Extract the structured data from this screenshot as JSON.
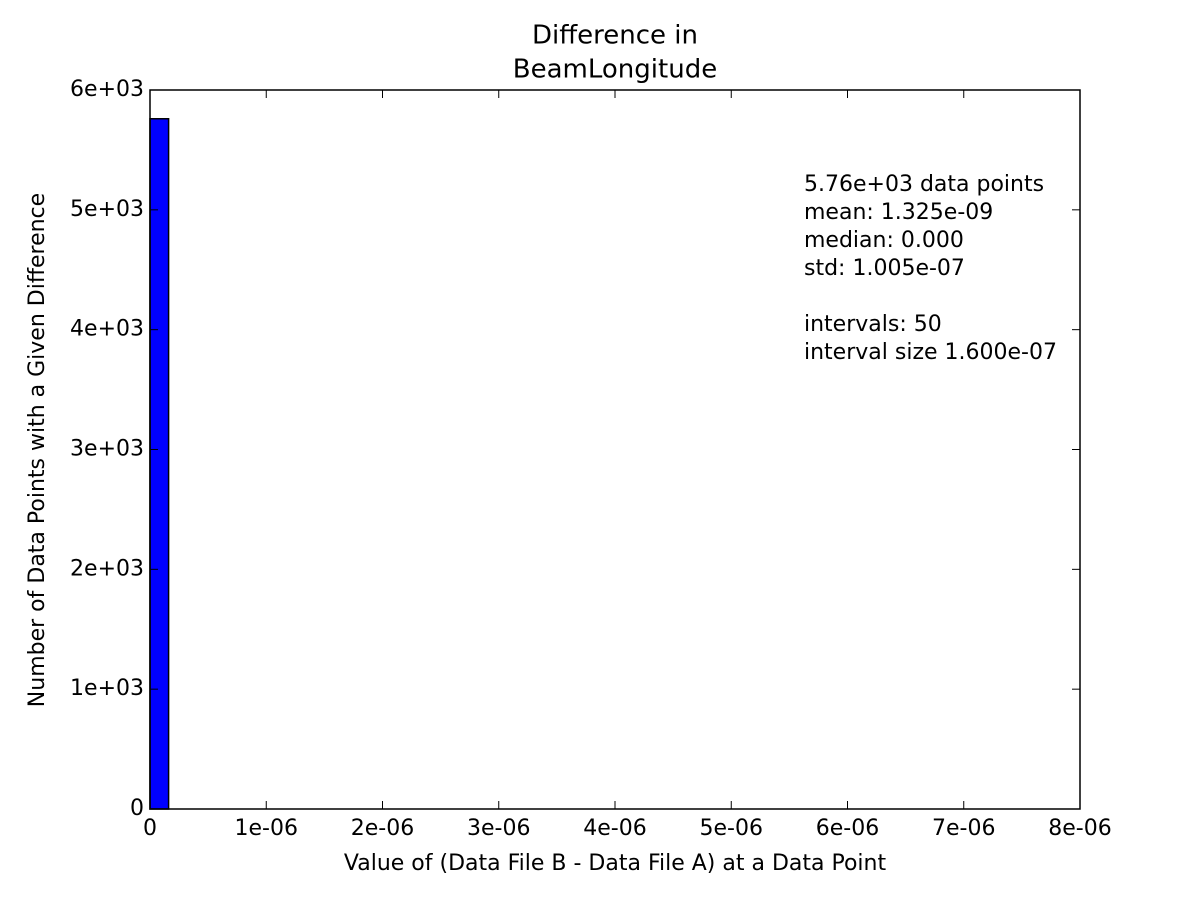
{
  "chart_data": {
    "type": "histogram",
    "title": [
      "Difference in",
      "BeamLongitude"
    ],
    "x_label": "Value of (Data File B - Data File A) at a Data Point",
    "y_label": "Number of Data Points with a Given Difference",
    "bins": [
      0,
      1.6e-07,
      3.2e-07,
      4.8e-07,
      6.4e-07,
      8e-07,
      9.6e-07,
      1.12e-06,
      1.28e-06,
      1.44e-06,
      1.6e-06,
      1.76e-06,
      1.92e-06,
      2.08e-06,
      2.24e-06,
      2.4e-06,
      2.56e-06,
      2.72e-06,
      2.88e-06,
      3.04e-06,
      3.2e-06,
      3.36e-06,
      3.52e-06,
      3.68e-06,
      3.84e-06,
      4e-06,
      4.16e-06,
      4.32e-06,
      4.48e-06,
      4.64e-06,
      4.8e-06,
      4.96e-06,
      5.12e-06,
      5.28e-06,
      5.44e-06,
      5.6e-06,
      5.76e-06,
      5.92e-06,
      6.08e-06,
      6.24e-06,
      6.4e-06,
      6.56e-06,
      6.72e-06,
      6.88e-06,
      7.04e-06,
      7.2e-06,
      7.36e-06,
      7.52e-06,
      7.68e-06,
      7.84e-06,
      8e-06
    ],
    "values": [
      5760,
      0,
      0,
      0,
      0,
      0,
      0,
      0,
      0,
      0,
      0,
      0,
      0,
      0,
      0,
      0,
      0,
      0,
      0,
      0,
      0,
      0,
      0,
      0,
      0,
      0,
      0,
      0,
      0,
      0,
      0,
      0,
      0,
      0,
      0,
      0,
      0,
      0,
      0,
      0,
      0,
      0,
      0,
      0,
      0,
      0,
      0,
      0,
      0,
      0
    ],
    "color": "#0000ff",
    "xlim": [
      0,
      8e-06
    ],
    "xticks": [
      0,
      {
        "value": 1e-06,
        "label": "1e-06"
      },
      {
        "value": 2e-06,
        "label": "2e-06"
      },
      {
        "value": 3e-06,
        "label": "3e-06"
      },
      {
        "value": 4e-06,
        "label": "4e-06"
      },
      {
        "value": 5e-06,
        "label": "5e-06"
      },
      {
        "value": 6e-06,
        "label": "6e-06"
      },
      {
        "value": 7e-06,
        "label": "7e-06"
      },
      {
        "value": 8e-06,
        "label": "8e-06"
      }
    ],
    "ylim": [
      0,
      6000
    ],
    "yticks": [
      0,
      {
        "value": 1000,
        "label": "1e+03"
      },
      {
        "value": 2000,
        "label": "2e+03"
      },
      {
        "value": 3000,
        "label": "3e+03"
      },
      {
        "value": 4000,
        "label": "4e+03"
      },
      {
        "value": 5000,
        "label": "5e+03"
      },
      {
        "value": 6000,
        "label": "6e+03"
      }
    ],
    "grid": false,
    "annotation": [
      "5.76e+03 data points",
      "mean: 1.325e-09",
      "median: 0.000",
      "std: 1.005e-07",
      "intervals: 50",
      "interval size 1.600e-07"
    ]
  }
}
